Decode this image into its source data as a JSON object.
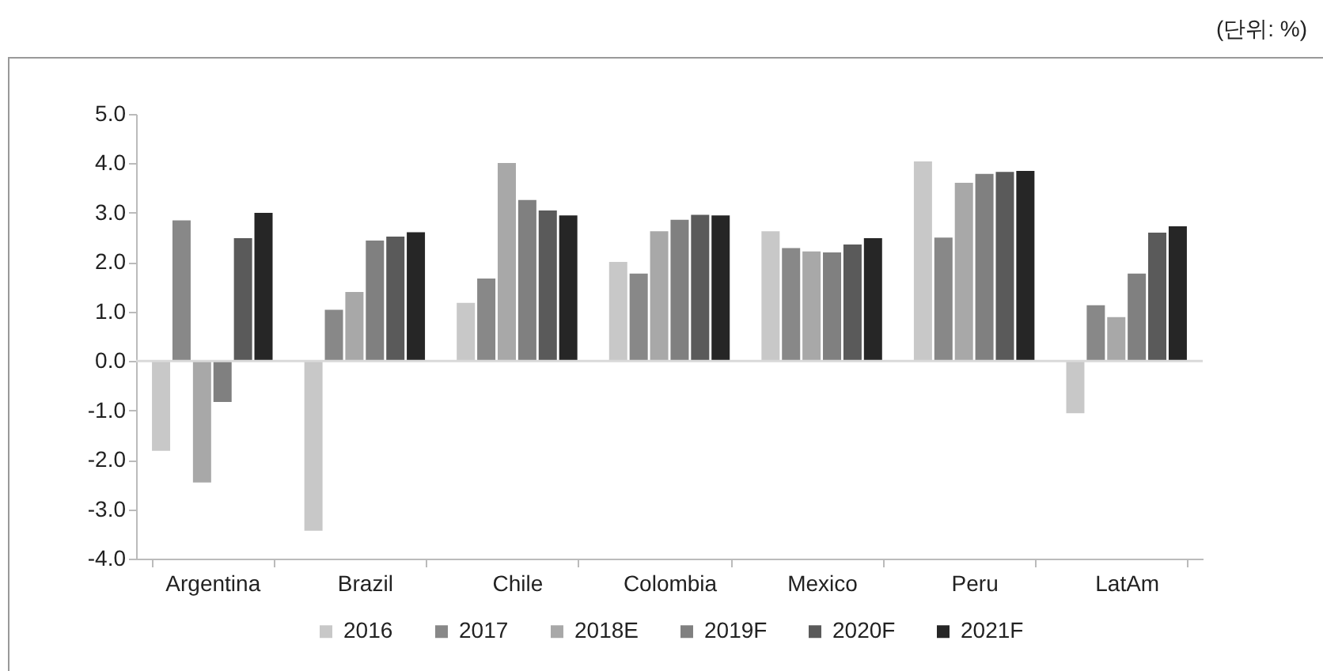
{
  "chart_data": {
    "type": "bar",
    "annotations": [
      "(단위: %)"
    ],
    "categories": [
      "Argentina",
      "Brazil",
      "Chile",
      "Colombia",
      "Mexico",
      "Peru",
      "LatAm"
    ],
    "series": [
      {
        "name": "2016",
        "color": "#c8c8c8",
        "values": [
          -1.83,
          -3.45,
          1.19,
          2.02,
          2.64,
          4.05,
          -1.07
        ]
      },
      {
        "name": "2017",
        "color": "#888888",
        "values": [
          2.86,
          1.05,
          1.68,
          1.78,
          2.3,
          2.51,
          1.14
        ]
      },
      {
        "name": "2018E",
        "color": "#a8a8a8",
        "values": [
          -2.47,
          1.41,
          4.02,
          2.64,
          2.23,
          3.62,
          0.9
        ]
      },
      {
        "name": "2019F",
        "color": "#808080",
        "values": [
          -0.84,
          2.45,
          3.27,
          2.87,
          2.21,
          3.8,
          1.78
        ]
      },
      {
        "name": "2020F",
        "color": "#5a5a5a",
        "values": [
          2.5,
          2.53,
          3.06,
          2.97,
          2.37,
          3.84,
          2.61
        ]
      },
      {
        "name": "2021F",
        "color": "#262626",
        "values": [
          3.01,
          2.62,
          2.96,
          2.96,
          2.5,
          3.86,
          2.74
        ]
      }
    ],
    "ylim": [
      -4,
      5
    ],
    "yticks": [
      {
        "value": -4,
        "label": "-4.0"
      },
      {
        "value": -3,
        "label": "-3.0"
      },
      {
        "value": -2,
        "label": "-2.0"
      },
      {
        "value": -1,
        "label": "-1.0"
      },
      {
        "value": 0,
        "label": "0.0"
      },
      {
        "value": 1,
        "label": "1.0"
      },
      {
        "value": 2,
        "label": "2.0"
      },
      {
        "value": 3,
        "label": "3.0"
      },
      {
        "value": 4,
        "label": "4.0"
      },
      {
        "value": 5,
        "label": "5.0"
      }
    ],
    "ref_lines": [
      {
        "axis": "y",
        "value": 0,
        "color": "#d9d9d9"
      }
    ],
    "grid": false,
    "legend": "bottom"
  }
}
